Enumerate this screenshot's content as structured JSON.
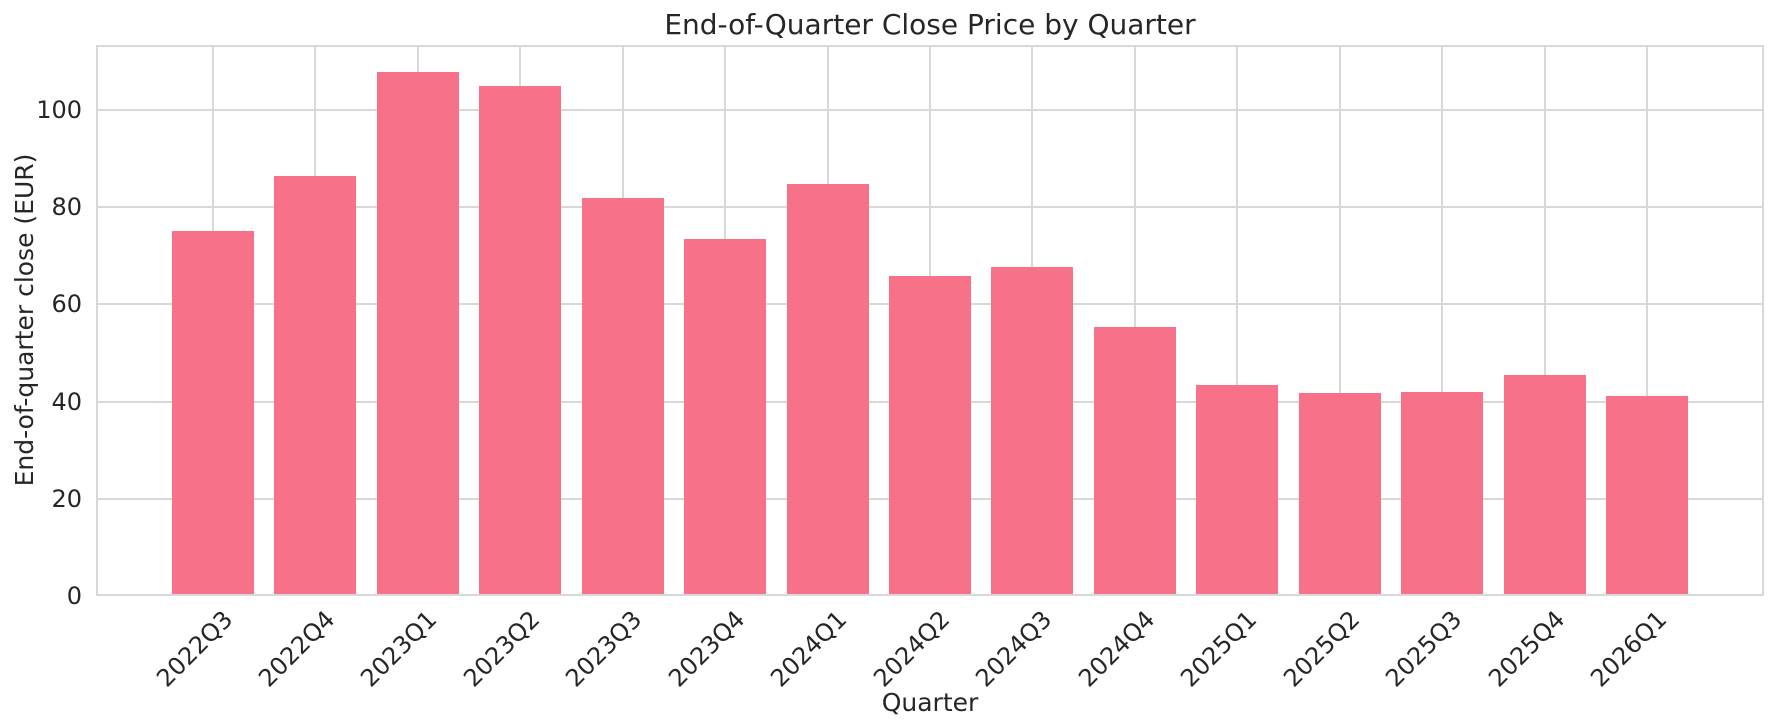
{
  "chart_data": {
    "type": "bar",
    "title": "End-of-Quarter Close Price by Quarter",
    "xlabel": "Quarter",
    "ylabel": "End-of-quarter close (EUR)",
    "categories": [
      "2022Q3",
      "2022Q4",
      "2023Q1",
      "2023Q2",
      "2023Q3",
      "2023Q4",
      "2024Q1",
      "2024Q2",
      "2024Q3",
      "2024Q4",
      "2025Q1",
      "2025Q2",
      "2025Q3",
      "2025Q4",
      "2026Q1"
    ],
    "values": [
      75.2,
      86.5,
      107.8,
      104.9,
      81.9,
      73.4,
      84.7,
      65.8,
      67.8,
      55.3,
      43.4,
      41.7,
      42.0,
      45.5,
      41.2
    ],
    "yticks": [
      0,
      20,
      40,
      60,
      80,
      100
    ],
    "ylim": [
      0,
      113.4
    ],
    "grid": true,
    "legend": null,
    "bar_color": "#f77189",
    "grid_color": "#d8d8d8",
    "text_color": "#262626",
    "x_tick_rotation_deg": 45
  }
}
